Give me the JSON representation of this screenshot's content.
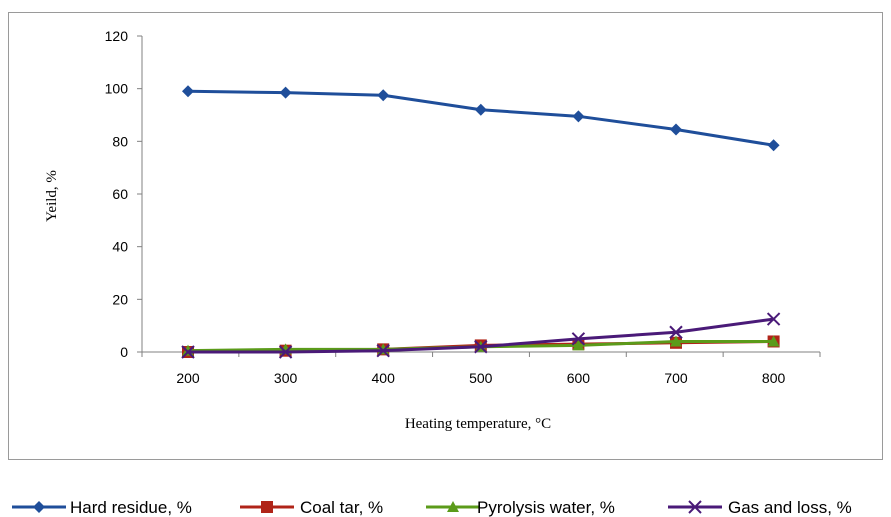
{
  "chart_data": {
    "type": "line",
    "x": [
      200,
      300,
      400,
      500,
      600,
      700,
      800
    ],
    "xlabel": "Heating temperature, °C",
    "ylabel": "Yeild, %",
    "ylim": [
      0,
      120
    ],
    "yticks": [
      0,
      20,
      40,
      60,
      80,
      100,
      120
    ],
    "grid": false,
    "legend_position": "bottom",
    "series": [
      {
        "name": "Hard residue, %",
        "color": "#1f4e9a",
        "marker": "diamond",
        "values": [
          99,
          98.5,
          97.5,
          92,
          89.5,
          84.5,
          78.5
        ]
      },
      {
        "name": "Coal tar, %",
        "color": "#b02418",
        "marker": "square",
        "values": [
          0,
          0.5,
          1,
          2.5,
          3,
          3.5,
          4
        ]
      },
      {
        "name": "Pyrolysis water, %",
        "color": "#5b9b1a",
        "marker": "triangle",
        "values": [
          0.5,
          1,
          1,
          2,
          2.5,
          4,
          4
        ]
      },
      {
        "name": "Gas and loss, %",
        "color": "#4a1a78",
        "marker": "x",
        "values": [
          0,
          0,
          0.5,
          2,
          5,
          7.5,
          12.5
        ]
      }
    ]
  }
}
